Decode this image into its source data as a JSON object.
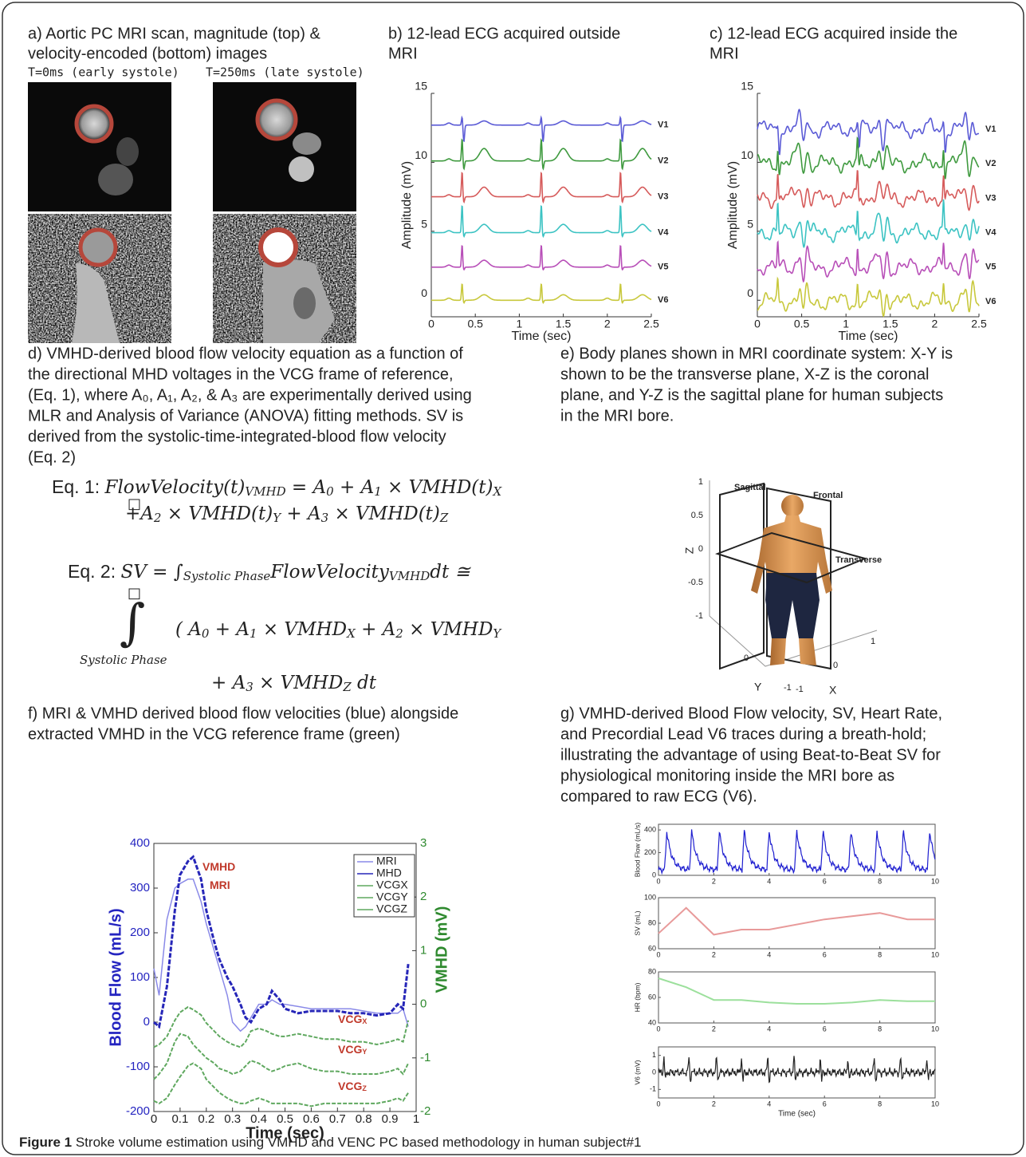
{
  "panels": {
    "a": {
      "caption_lines": [
        "a) Aortic PC MRI scan, magnitude (top) &",
        "velocity-encoded (bottom) images"
      ],
      "time_labels": [
        "T=0ms (early systole)",
        "T=250ms (late systole)"
      ]
    },
    "b": {
      "caption_lines": [
        "b) 12-lead ECG acquired outside",
        "MRI"
      ],
      "chart": {
        "type": "ecg",
        "ylabel": "Amplitude (mV)",
        "xlabel": "Time (sec)",
        "xlim": [
          0,
          2.5
        ],
        "ylim": [
          -1.2,
          15
        ],
        "xticks": [
          0,
          0.5,
          1,
          1.5,
          2,
          2.5
        ],
        "yticks": [
          0,
          5,
          10,
          15
        ],
        "beats": [
          0.35,
          1.25,
          2.15
        ],
        "mri_artifact": false,
        "series": [
          {
            "name": "V1",
            "color": "#5b5bd6",
            "baseline": 12.7
          },
          {
            "name": "V2",
            "color": "#3f9a3f",
            "baseline": 10.1
          },
          {
            "name": "V3",
            "color": "#d65b5b",
            "baseline": 7.5
          },
          {
            "name": "V4",
            "color": "#3cc3c3",
            "baseline": 4.9
          },
          {
            "name": "V5",
            "color": "#b84fb8",
            "baseline": 2.4
          },
          {
            "name": "V6",
            "color": "#c8c83c",
            "baseline": 0
          }
        ]
      }
    },
    "c": {
      "caption_lines": [
        "c) 12-lead ECG acquired inside the",
        "MRI"
      ],
      "chart": {
        "type": "ecg",
        "ylabel": "Amplitude (mV)",
        "xlabel": "Time (sec)",
        "xlim": [
          0,
          2.5
        ],
        "ylim": [
          -1.2,
          15
        ],
        "xticks": [
          0,
          0.5,
          1,
          1.5,
          2,
          2.5
        ],
        "yticks": [
          0,
          5,
          10,
          15
        ],
        "beats": [
          0.23,
          1.13,
          2.1
        ],
        "mri_artifact": true,
        "series": [
          {
            "name": "V1",
            "color": "#5b5bd6",
            "baseline": 12.4
          },
          {
            "name": "V2",
            "color": "#3f9a3f",
            "baseline": 9.9
          },
          {
            "name": "V3",
            "color": "#d65b5b",
            "baseline": 7.4
          },
          {
            "name": "V4",
            "color": "#3cc3c3",
            "baseline": 4.9
          },
          {
            "name": "V5",
            "color": "#b84fb8",
            "baseline": 2.4
          },
          {
            "name": "V6",
            "color": "#c8c83c",
            "baseline": -0.1
          }
        ]
      }
    },
    "d": {
      "caption_lines": [
        "d) VMHD-derived blood flow velocity equation as a function of",
        "the directional MHD voltages in the VCG frame of reference,",
        "(Eq. 1), where A₀, A₁, A₂, & A₃ are experimentally derived using",
        "MLR and Analysis of Variance (ANOVA)  fitting methods. SV is",
        "derived from the systolic-time-integrated-blood flow velocity",
        "(Eq. 2)"
      ],
      "equations": [
        [
          {
            "text": "Eq. 1: ",
            "plain": true
          },
          {
            "text": "FlowVelocity(t)"
          },
          {
            "text": "VMHD",
            "sub": true
          },
          {
            "text": " = A"
          },
          {
            "text": "0",
            "sub": true
          },
          {
            "text": " + A"
          },
          {
            "text": "1",
            "sub": true
          },
          {
            "text": " × VMHD(t)"
          },
          {
            "text": "X",
            "sub": true
          }
        ],
        [
          {
            "text": "+A"
          },
          {
            "text": "2",
            "sub": true
          },
          {
            "text": " × VMHD(t)"
          },
          {
            "text": "Y",
            "sub": true
          },
          {
            "text": " + A"
          },
          {
            "text": "3",
            "sub": true
          },
          {
            "text": " × VMHD(t)"
          },
          {
            "text": "Z",
            "sub": true
          }
        ],
        [
          {
            "text": "Eq. 2: ",
            "plain": true
          },
          {
            "text": "SV = ∫"
          },
          {
            "text": "Systolic Phase",
            "sub": true
          },
          {
            "text": "FlowVelocity"
          },
          {
            "text": "VMHD",
            "sub": true
          },
          {
            "text": "dt ≅"
          }
        ],
        [
          {
            "text": "( A"
          },
          {
            "text": "0",
            "sub": true
          },
          {
            "text": " + A"
          },
          {
            "text": "1",
            "sub": true
          },
          {
            "text": " × VMHD"
          },
          {
            "text": "X",
            "sub": true
          },
          {
            "text": " + A"
          },
          {
            "text": "2",
            "sub": true
          },
          {
            "text": " × VMHD"
          },
          {
            "text": "Y",
            "sub": true
          }
        ],
        [
          {
            "text": "+ A"
          },
          {
            "text": "3",
            "sub": true
          },
          {
            "text": " × VMHD"
          },
          {
            "text": "Z",
            "sub": true
          },
          {
            "text": " dt"
          }
        ]
      ],
      "integral": {
        "symbol": "∫",
        "box": "□",
        "lower": "Systolic Phase"
      }
    },
    "e": {
      "caption_lines": [
        "e)  Body planes shown in MRI coordinate system: X-Y is",
        "shown to be the transverse plane, X-Z is the coronal",
        "plane, and Y-Z is the sagittal plane for human subjects",
        "in the MRI bore."
      ],
      "plot": {
        "zticks": [
          1,
          0.5,
          0,
          -0.5,
          -1
        ],
        "xticks": [
          -1,
          0,
          1
        ],
        "yticks": [
          -1,
          0
        ],
        "xlabel": "X",
        "ylabel": "Y",
        "zlabel": "Z",
        "plane_labels": [
          "Sagittal",
          "Frontal",
          "Transverse"
        ]
      }
    },
    "f": {
      "caption_lines": [
        "f) MRI & VMHD derived blood flow velocities (blue) alongside",
        "extracted VMHD in the VCG reference  frame (green)"
      ],
      "chart": {
        "type": "line",
        "xlabel": "Time (sec)",
        "ylabel": "Blood Flow (mL/s)",
        "y2label": "VMHD (mV)",
        "xlim": [
          0,
          1
        ],
        "xticks": [
          0,
          0.1,
          0.2,
          0.3,
          0.4,
          0.5,
          0.6,
          0.7,
          0.8,
          0.9,
          1
        ],
        "ylim": [
          -200,
          400
        ],
        "yticks": [
          -200,
          -100,
          0,
          100,
          200,
          300,
          400
        ],
        "y2lim": [
          -2,
          3
        ],
        "y2ticks": [
          -2,
          -1,
          0,
          1,
          2,
          3
        ],
        "legend": "upper right",
        "x": [
          0,
          0.02,
          0.05,
          0.08,
          0.1,
          0.13,
          0.15,
          0.18,
          0.2,
          0.23,
          0.25,
          0.28,
          0.3,
          0.33,
          0.35,
          0.37,
          0.4,
          0.43,
          0.45,
          0.48,
          0.5,
          0.55,
          0.6,
          0.65,
          0.7,
          0.75,
          0.8,
          0.85,
          0.9,
          0.93,
          0.95,
          0.97
        ],
        "series": [
          {
            "name": "MRI",
            "color": "#8a8ae8",
            "values": [
              120,
              60,
              230,
              300,
              310,
              320,
              320,
              270,
              220,
              160,
              120,
              60,
              0,
              -20,
              -10,
              10,
              40,
              40,
              50,
              40,
              40,
              35,
              30,
              30,
              30,
              30,
              25,
              20,
              20,
              20,
              30,
              -10
            ]
          },
          {
            "name": "MHD",
            "color": "#2626b8",
            "values": [
              0,
              -10,
              80,
              250,
              330,
              360,
              370,
              320,
              250,
              180,
              140,
              100,
              80,
              40,
              10,
              0,
              30,
              40,
              70,
              50,
              30,
              20,
              25,
              25,
              25,
              20,
              20,
              15,
              20,
              40,
              30,
              130
            ]
          },
          {
            "name": "VCGX",
            "color": "#5fa85f",
            "axis": "y2",
            "values": [
              -0.8,
              -0.75,
              -0.6,
              -0.3,
              -0.15,
              -0.05,
              -0.1,
              -0.2,
              -0.35,
              -0.5,
              -0.6,
              -0.7,
              -0.75,
              -0.8,
              -0.7,
              -0.5,
              -0.45,
              -0.5,
              -0.55,
              -0.6,
              -0.6,
              -0.55,
              -0.6,
              -0.65,
              -0.65,
              -0.7,
              -0.7,
              -0.75,
              -0.7,
              -0.65,
              -0.7,
              -0.3
            ]
          },
          {
            "name": "VCGY",
            "color": "#5fa85f",
            "axis": "y2",
            "values": [
              -1.4,
              -1.3,
              -1.1,
              -0.7,
              -0.55,
              -0.6,
              -0.75,
              -0.9,
              -1.0,
              -1.1,
              -1.2,
              -1.25,
              -1.3,
              -1.25,
              -1.15,
              -1.05,
              -1.1,
              -1.2,
              -1.25,
              -1.2,
              -1.15,
              -1.1,
              -1.2,
              -1.25,
              -1.25,
              -1.3,
              -1.3,
              -1.3,
              -1.25,
              -1.2,
              -1.3,
              -1.1
            ]
          },
          {
            "name": "VCGZ",
            "color": "#5fa85f",
            "axis": "y2",
            "values": [
              -1.8,
              -1.85,
              -1.75,
              -1.5,
              -1.35,
              -1.15,
              -1.1,
              -1.2,
              -1.4,
              -1.55,
              -1.65,
              -1.75,
              -1.8,
              -1.85,
              -1.85,
              -1.8,
              -1.75,
              -1.8,
              -1.85,
              -1.85,
              -1.85,
              -1.85,
              -1.9,
              -1.85,
              -1.85,
              -1.85,
              -1.85,
              -1.85,
              -1.8,
              -1.75,
              -1.8,
              -1.65
            ]
          }
        ],
        "annotations": [
          {
            "text": "VMHD"
          },
          {
            "text": "MRI"
          },
          {
            "text": "VCG",
            "sub": "X"
          },
          {
            "text": "VCG",
            "sub": "Y"
          },
          {
            "text": "VCG",
            "sub": "Z"
          }
        ]
      }
    },
    "g": {
      "caption_lines": [
        "g) VMHD-derived Blood Flow velocity, SV, Heart Rate,",
        "and Precordial Lead V6 traces during a breath-hold;",
        "illustrating the advantage of using Beat-to-Beat SV for",
        "physiological monitoring inside the MRI bore as",
        "compared to raw ECG (V6)."
      ],
      "charts": [
        {
          "type": "pulse",
          "ylabel": "Blood Flow (mL/s)",
          "xlim": [
            0,
            10
          ],
          "xticks": [
            0,
            2,
            4,
            6,
            8,
            10
          ],
          "ylim": [
            0,
            450
          ],
          "yticks": [
            0,
            200,
            400
          ],
          "color": "#1e1ed0",
          "peak": 400,
          "beats": [
            0.3,
            1.2,
            2.2,
            3.1,
            4.0,
            5.0,
            5.95,
            6.95,
            7.9,
            8.85,
            9.8
          ]
        },
        {
          "type": "line",
          "ylabel": "SV (mL)",
          "xlim": [
            0,
            10
          ],
          "xticks": [
            0,
            2,
            4,
            6,
            8,
            10
          ],
          "ylim": [
            60,
            100
          ],
          "yticks": [
            60,
            80,
            100
          ],
          "color": "#e89a9a",
          "x": [
            0,
            1,
            2,
            3,
            4,
            6,
            8,
            9,
            10
          ],
          "values": [
            72,
            92,
            71,
            75,
            75,
            83,
            88,
            83,
            83
          ]
        },
        {
          "type": "line",
          "ylabel": "HR (bpm)",
          "xlim": [
            0,
            10
          ],
          "xticks": [
            0,
            2,
            4,
            6,
            8,
            10
          ],
          "ylim": [
            40,
            80
          ],
          "yticks": [
            40,
            60,
            80
          ],
          "color": "#9ce09c",
          "x": [
            0,
            1,
            2,
            3,
            4,
            5,
            6,
            7,
            8,
            9,
            10
          ],
          "values": [
            75,
            68,
            58,
            58,
            56,
            55,
            55,
            56,
            58,
            57,
            57
          ]
        },
        {
          "type": "spikes",
          "ylabel": "V6 (mV)",
          "xlabel": "Time (sec)",
          "xlim": [
            0,
            10
          ],
          "xticks": [
            0,
            2,
            4,
            6,
            8,
            10
          ],
          "ylim": [
            -1.5,
            1.5
          ],
          "yticks": [
            -1,
            0,
            1
          ],
          "color": "#222222",
          "beats": [
            0.2,
            1.1,
            2.1,
            3.0,
            3.95,
            4.9,
            5.85,
            6.85,
            7.8,
            8.75,
            9.7
          ]
        }
      ]
    }
  },
  "figure_caption": {
    "label": "Figure 1",
    "text": " Stroke volume estimation using VMHD and VENC PC based methodology in human subject#1"
  }
}
